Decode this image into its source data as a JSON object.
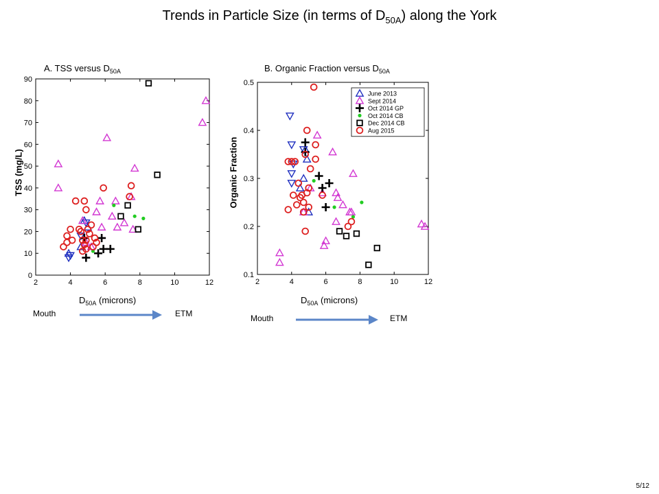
{
  "title": {
    "before": "Trends in Particle Size (in terms of D",
    "sub": "50A",
    "after": ") along the York"
  },
  "page_number": "5/12",
  "colors": {
    "june2013": "#1f2fbf",
    "sept2014": "#d236d2",
    "oct2014gp": "#000000",
    "oct2014cb": "#22cc22",
    "dec2014cb": "#000000",
    "aug2015": "#dd1f1f",
    "arrow": "#5b86c8"
  },
  "panels": [
    {
      "title_before": "A. TSS versus D",
      "title_sub": "50A",
      "ylabel": "TSS (mg/L)",
      "xlabel_main": "D",
      "xlabel_sub": "50A",
      "xlabel_after": " (microns)",
      "mouth_label": "Mouth",
      "etm_label": "ETM"
    },
    {
      "title_before": "B. Organic Fraction versus D",
      "title_sub": "50A",
      "ylabel": "Organic Fraction",
      "xlabel_main": "D",
      "xlabel_sub": "50A",
      "xlabel_after": " (microns)",
      "mouth_label": "Mouth",
      "etm_label": "ETM"
    }
  ],
  "chart_data": [
    {
      "type": "scatter",
      "title": "A. TSS versus D50A",
      "xlabel": "D50A (microns)",
      "ylabel": "TSS (mg/L)",
      "xlim": [
        2,
        12
      ],
      "ylim": [
        0,
        90
      ],
      "xticks": [
        2,
        4,
        6,
        8,
        10,
        12
      ],
      "yticks": [
        0,
        10,
        20,
        30,
        40,
        50,
        60,
        70,
        80,
        90
      ],
      "legend": "none",
      "series": [
        {
          "name": "June 2013",
          "marker": "triangle-up",
          "color": "#1f2fbf",
          "points": [
            [
              3.9,
              10
            ],
            [
              4.8,
              25
            ],
            [
              5.0,
              22
            ],
            [
              4.6,
              13
            ]
          ]
        },
        {
          "name": "June 2013 (down)",
          "marker": "triangle-down",
          "color": "#1f2fbf",
          "points": [
            [
              3.9,
              8
            ],
            [
              4.0,
              9
            ],
            [
              4.6,
              18
            ],
            [
              4.9,
              24
            ]
          ]
        },
        {
          "name": "Sept 2014",
          "marker": "triangle-up",
          "color": "#d236d2",
          "points": [
            [
              3.3,
              51
            ],
            [
              3.3,
              40
            ],
            [
              4.7,
              25
            ],
            [
              5.5,
              29
            ],
            [
              5.8,
              22
            ],
            [
              6.1,
              63
            ],
            [
              6.4,
              27
            ],
            [
              6.6,
              34
            ],
            [
              6.7,
              22
            ],
            [
              7.1,
              24
            ],
            [
              7.5,
              36
            ],
            [
              7.6,
              21
            ],
            [
              7.7,
              49
            ],
            [
              11.6,
              70
            ],
            [
              11.8,
              80
            ],
            [
              5.7,
              34
            ],
            [
              4.9,
              15
            ],
            [
              5.2,
              13
            ]
          ]
        },
        {
          "name": "Oct 2014 GP",
          "marker": "plus",
          "color": "#000000",
          "points": [
            [
              4.9,
              8
            ],
            [
              5.6,
              10
            ],
            [
              5.9,
              12
            ],
            [
              6.3,
              12
            ],
            [
              5.8,
              17
            ],
            [
              4.8,
              17
            ]
          ]
        },
        {
          "name": "Oct 2014 CB",
          "marker": "dot",
          "color": "#22cc22",
          "points": [
            [
              6.5,
              32
            ],
            [
              7.7,
              27
            ],
            [
              8.2,
              26
            ],
            [
              5.3,
              11
            ]
          ]
        },
        {
          "name": "Dec 2014 CB",
          "marker": "square",
          "color": "#000000",
          "points": [
            [
              6.9,
              27
            ],
            [
              7.3,
              32
            ],
            [
              7.9,
              21
            ],
            [
              8.5,
              88
            ],
            [
              9.0,
              46
            ]
          ]
        },
        {
          "name": "Aug 2015",
          "marker": "circle",
          "color": "#dd1f1f",
          "points": [
            [
              3.6,
              13
            ],
            [
              3.8,
              15
            ],
            [
              3.8,
              18
            ],
            [
              4.0,
              21
            ],
            [
              4.1,
              16
            ],
            [
              4.3,
              34
            ],
            [
              4.5,
              21
            ],
            [
              4.6,
              20
            ],
            [
              4.7,
              16
            ],
            [
              4.8,
              14
            ],
            [
              4.8,
              34
            ],
            [
              4.9,
              12
            ],
            [
              4.9,
              30
            ],
            [
              5.0,
              21
            ],
            [
              5.1,
              19
            ],
            [
              5.2,
              23
            ],
            [
              5.3,
              13
            ],
            [
              5.4,
              17
            ],
            [
              5.5,
              15
            ],
            [
              4.7,
              11
            ],
            [
              5.9,
              40
            ],
            [
              7.5,
              41
            ],
            [
              7.4,
              36
            ],
            [
              4.9,
              16
            ]
          ]
        }
      ]
    },
    {
      "type": "scatter",
      "title": "B. Organic Fraction versus D50A",
      "xlabel": "D50A (microns)",
      "ylabel": "Organic Fraction",
      "xlim": [
        2,
        12
      ],
      "ylim": [
        0.1,
        0.5
      ],
      "xticks": [
        2,
        4,
        6,
        8,
        10,
        12
      ],
      "yticks": [
        0.1,
        0.2,
        0.3,
        0.4,
        0.5
      ],
      "legend": "top-right",
      "legend_entries": [
        "June 2013",
        "Sept 2014",
        "Oct 2014 GP",
        "Oct 2014 CB",
        "Dec 2014 CB",
        "Aug 2015"
      ],
      "series": [
        {
          "name": "June 2013",
          "marker": "triangle-up",
          "color": "#1f2fbf",
          "points": [
            [
              4.7,
              0.3
            ],
            [
              4.9,
              0.34
            ],
            [
              5.0,
              0.23
            ],
            [
              4.8,
              0.36
            ],
            [
              4.5,
              0.28
            ]
          ]
        },
        {
          "name": "June 2013 (down)",
          "marker": "triangle-down",
          "color": "#1f2fbf",
          "points": [
            [
              3.9,
              0.43
            ],
            [
              4.0,
              0.37
            ],
            [
              4.0,
              0.31
            ],
            [
              4.0,
              0.29
            ],
            [
              4.1,
              0.33
            ],
            [
              4.7,
              0.36
            ]
          ]
        },
        {
          "name": "Sept 2014",
          "marker": "triangle-up",
          "color": "#d236d2",
          "points": [
            [
              3.3,
              0.145
            ],
            [
              3.3,
              0.125
            ],
            [
              4.7,
              0.23
            ],
            [
              5.1,
              0.28
            ],
            [
              5.5,
              0.39
            ],
            [
              5.8,
              0.27
            ],
            [
              5.9,
              0.16
            ],
            [
              6.0,
              0.17
            ],
            [
              6.4,
              0.355
            ],
            [
              6.6,
              0.27
            ],
            [
              6.6,
              0.21
            ],
            [
              6.7,
              0.26
            ],
            [
              7.0,
              0.245
            ],
            [
              7.4,
              0.23
            ],
            [
              7.6,
              0.31
            ],
            [
              11.6,
              0.205
            ],
            [
              11.8,
              0.2
            ],
            [
              7.5,
              0.23
            ]
          ]
        },
        {
          "name": "Oct 2014 GP",
          "marker": "plus",
          "color": "#000000",
          "points": [
            [
              4.8,
              0.375
            ],
            [
              4.8,
              0.355
            ],
            [
              5.6,
              0.305
            ],
            [
              5.8,
              0.28
            ],
            [
              6.2,
              0.29
            ],
            [
              6.0,
              0.24
            ]
          ]
        },
        {
          "name": "Oct 2014 CB",
          "marker": "dot",
          "color": "#22cc22",
          "points": [
            [
              5.3,
              0.295
            ],
            [
              6.5,
              0.24
            ],
            [
              7.6,
              0.22
            ],
            [
              8.1,
              0.25
            ]
          ]
        },
        {
          "name": "Dec 2014 CB",
          "marker": "square",
          "color": "#000000",
          "points": [
            [
              6.8,
              0.19
            ],
            [
              7.2,
              0.18
            ],
            [
              7.8,
              0.185
            ],
            [
              8.5,
              0.12
            ],
            [
              9.0,
              0.155
            ]
          ]
        },
        {
          "name": "Aug 2015",
          "marker": "circle",
          "color": "#dd1f1f",
          "points": [
            [
              3.8,
              0.335
            ],
            [
              4.0,
              0.335
            ],
            [
              4.1,
              0.265
            ],
            [
              4.2,
              0.335
            ],
            [
              4.3,
              0.245
            ],
            [
              4.4,
              0.29
            ],
            [
              4.5,
              0.26
            ],
            [
              4.6,
              0.265
            ],
            [
              4.7,
              0.25
            ],
            [
              4.7,
              0.23
            ],
            [
              4.8,
              0.19
            ],
            [
              4.9,
              0.27
            ],
            [
              4.9,
              0.4
            ],
            [
              5.0,
              0.28
            ],
            [
              5.1,
              0.32
            ],
            [
              5.3,
              0.49
            ],
            [
              5.4,
              0.37
            ],
            [
              5.4,
              0.34
            ],
            [
              5.8,
              0.265
            ],
            [
              7.3,
              0.2
            ],
            [
              7.5,
              0.21
            ],
            [
              3.8,
              0.235
            ],
            [
              4.8,
              0.35
            ],
            [
              5.0,
              0.24
            ]
          ]
        }
      ]
    }
  ]
}
